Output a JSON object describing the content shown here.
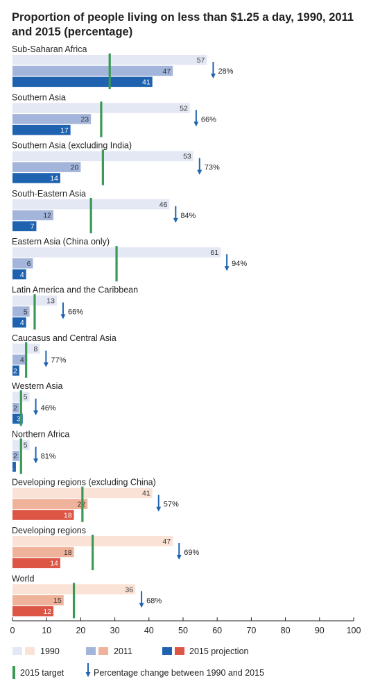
{
  "title_line1": "Proportion of people living on less than $1.25 a day, 1990, 2011",
  "title_line2": "and 2015 (percentage)",
  "colors": {
    "blue_1990": "#e3e8f4",
    "blue_2011": "#a3b5da",
    "blue_2015": "#1f63b0",
    "red_1990": "#fae2d6",
    "red_2011": "#efb29a",
    "red_2015": "#dd5545",
    "target": "#3a9a55",
    "arrow": "#1f63b0"
  },
  "legend": {
    "l1990": "1990",
    "l2011": "2011",
    "l2015": "2015 projection",
    "target": "2015 target",
    "change": "Percentage change between 1990 and 2015"
  },
  "chart_data": {
    "type": "bar",
    "orientation": "horizontal",
    "title": "Proportion of people living on less than $1.25 a day, 1990, 2011 and 2015 (percentage)",
    "xlim": [
      0,
      100
    ],
    "xticks": [
      0,
      10,
      20,
      30,
      40,
      50,
      60,
      70,
      80,
      90,
      100
    ],
    "series_names": [
      "1990",
      "2011",
      "2015 projection"
    ],
    "groups": [
      {
        "name": "Sub-Saharan Africa",
        "v1990": 57,
        "v2011": 47,
        "v2015": 41,
        "target": 28.5,
        "change": "28%",
        "palette": "blue"
      },
      {
        "name": "Southern Asia",
        "v1990": 52,
        "v2011": 23,
        "v2015": 17,
        "target": 26,
        "change": "66%",
        "palette": "blue"
      },
      {
        "name": "Southern Asia (excluding India)",
        "v1990": 53,
        "v2011": 20,
        "v2015": 14,
        "target": 26.5,
        "change": "73%",
        "palette": "blue"
      },
      {
        "name": "South-Eastern Asia",
        "v1990": 46,
        "v2011": 12,
        "v2015": 7,
        "target": 23,
        "change": "84%",
        "palette": "blue"
      },
      {
        "name": "Eastern Asia (China only)",
        "v1990": 61,
        "v2011": 6,
        "v2015": 4,
        "target": 30.5,
        "change": "94%",
        "palette": "blue"
      },
      {
        "name": "Latin America and the Caribbean",
        "v1990": 13,
        "v2011": 5,
        "v2015": 4,
        "target": 6.5,
        "change": "66%",
        "palette": "blue"
      },
      {
        "name": "Caucasus and Central Asia",
        "v1990": 8,
        "v2011": 4,
        "v2015": 2,
        "target": 4,
        "change": "77%",
        "palette": "blue"
      },
      {
        "name": "Western Asia",
        "v1990": 5,
        "v2011": 2,
        "v2015": 3,
        "target": 2.5,
        "change": "46%",
        "palette": "blue"
      },
      {
        "name": "Northern Africa",
        "v1990": 5,
        "v2011": 2,
        "v2015": 1,
        "target": 2.5,
        "change": "81%",
        "palette": "blue"
      },
      {
        "name": "Developing regions (excluding China)",
        "v1990": 41,
        "v2011": 22,
        "v2015": 18,
        "target": 20.5,
        "change": "57%",
        "palette": "red"
      },
      {
        "name": "Developing regions",
        "v1990": 47,
        "v2011": 18,
        "v2015": 14,
        "target": 23.5,
        "change": "69%",
        "palette": "red"
      },
      {
        "name": "World",
        "v1990": 36,
        "v2011": 15,
        "v2015": 12,
        "target": 18,
        "change": "68%",
        "palette": "red"
      }
    ]
  }
}
